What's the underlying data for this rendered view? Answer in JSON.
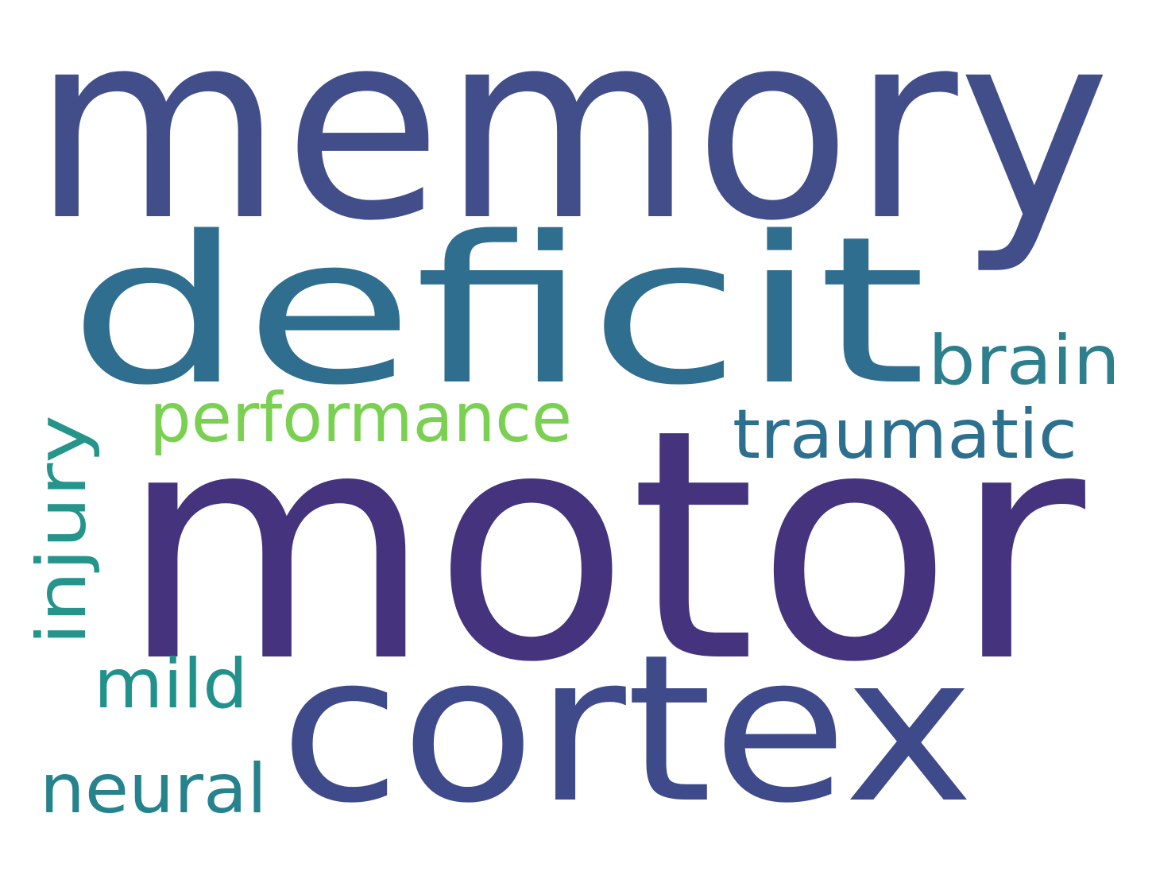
{
  "cloud": {
    "background": "#ffffff",
    "words": [
      {
        "text": "memory",
        "weight": 1.0,
        "color": "#414e89",
        "orientation": "horizontal"
      },
      {
        "text": "motor",
        "weight": 1.0,
        "color": "#46337e",
        "orientation": "horizontal"
      },
      {
        "text": "deficit",
        "weight": 0.75,
        "color": "#2f6e8e",
        "orientation": "horizontal"
      },
      {
        "text": "cortex",
        "weight": 0.75,
        "color": "#3e4a89",
        "orientation": "horizontal"
      },
      {
        "text": "performance",
        "weight": 0.3,
        "color": "#7ad151",
        "orientation": "horizontal"
      },
      {
        "text": "brain",
        "weight": 0.3,
        "color": "#2e7f8e",
        "orientation": "horizontal"
      },
      {
        "text": "traumatic",
        "weight": 0.3,
        "color": "#2d6f8e",
        "orientation": "horizontal"
      },
      {
        "text": "injury",
        "weight": 0.3,
        "color": "#25958c",
        "orientation": "vertical"
      },
      {
        "text": "mild",
        "weight": 0.3,
        "color": "#21918c",
        "orientation": "horizontal"
      },
      {
        "text": "neural",
        "weight": 0.3,
        "color": "#26838e",
        "orientation": "horizontal"
      }
    ]
  }
}
